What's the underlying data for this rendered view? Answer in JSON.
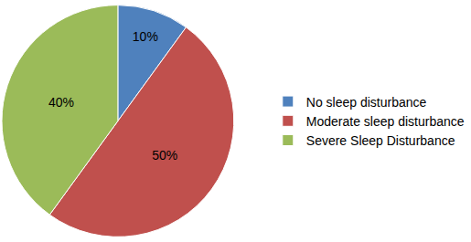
{
  "chart_data": {
    "type": "pie",
    "categories": [
      "No sleep disturbance",
      "Moderate sleep disturbance",
      "Severe Sleep Disturbance"
    ],
    "values": [
      10,
      50,
      40
    ],
    "value_labels": [
      "10%",
      "50%",
      "40%"
    ],
    "colors": [
      "#4f81bd",
      "#c0504d",
      "#9bbb59"
    ],
    "data_labels": true,
    "legend": "right"
  }
}
